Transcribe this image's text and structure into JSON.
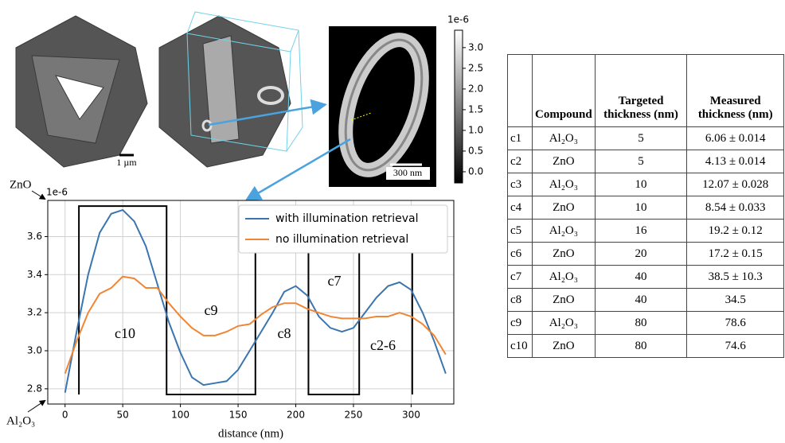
{
  "chart_data": {
    "type": "line",
    "offset_label": "1e-6",
    "x_label": "distance (nm)",
    "xlim": [
      -15,
      337
    ],
    "ylim": [
      2.72,
      3.79
    ],
    "xticks": [
      0,
      50,
      100,
      150,
      200,
      250,
      300
    ],
    "yticks": [
      2.8,
      {
        "value": 3,
        "label": "3.0"
      },
      3.2,
      3.4,
      3.6
    ],
    "grid": true,
    "legend": "upper right",
    "series": [
      {
        "name": "with illumination retrieval",
        "color": "#3b75af",
        "x": [
          0,
          10,
          20,
          30,
          40,
          50,
          60,
          70,
          80,
          90,
          100,
          110,
          120,
          130,
          140,
          150,
          160,
          170,
          180,
          190,
          200,
          210,
          220,
          230,
          240,
          250,
          260,
          270,
          280,
          290,
          300,
          310,
          320,
          330
        ],
        "values": [
          2.78,
          3.1,
          3.4,
          3.62,
          3.72,
          3.74,
          3.68,
          3.55,
          3.35,
          3.15,
          2.99,
          2.86,
          2.82,
          2.83,
          2.84,
          2.9,
          3.0,
          3.1,
          3.2,
          3.31,
          3.34,
          3.29,
          3.18,
          3.12,
          3.1,
          3.12,
          3.2,
          3.28,
          3.34,
          3.36,
          3.32,
          3.2,
          3.05,
          2.88
        ]
      },
      {
        "name": "no illumination retrieval",
        "color": "#ef8636",
        "x": [
          0,
          10,
          20,
          30,
          40,
          50,
          60,
          70,
          80,
          90,
          100,
          110,
          120,
          130,
          140,
          150,
          160,
          170,
          180,
          190,
          200,
          210,
          220,
          230,
          240,
          250,
          260,
          270,
          280,
          290,
          300,
          310,
          320,
          330
        ],
        "values": [
          2.88,
          3.05,
          3.2,
          3.3,
          3.33,
          3.39,
          3.38,
          3.33,
          3.33,
          3.25,
          3.18,
          3.12,
          3.08,
          3.08,
          3.1,
          3.13,
          3.14,
          3.19,
          3.23,
          3.25,
          3.25,
          3.22,
          3.2,
          3.18,
          3.17,
          3.17,
          3.17,
          3.18,
          3.18,
          3.2,
          3.18,
          3.14,
          3.08,
          2.98
        ]
      }
    ],
    "profile": {
      "color": "#000000",
      "x": [
        12,
        12,
        88,
        88,
        165,
        165,
        211,
        211,
        255,
        255,
        301,
        301
      ],
      "values": [
        2.77,
        3.76,
        3.76,
        2.77,
        2.77,
        3.76,
        3.76,
        2.77,
        2.77,
        3.76,
        3.76,
        2.77
      ]
    },
    "annotations": [
      "c10",
      "c9",
      "c8",
      "c7",
      "c2-6"
    ],
    "top_label": "ZnO",
    "bottom_label": "Al₂O₃"
  },
  "colorbar": {
    "offset_label": "1e-6",
    "clim": [
      -0.27,
      3.42
    ],
    "ticks": [
      {
        "value": 0,
        "label": "0.0"
      },
      0.5,
      {
        "value": 1,
        "label": "1.0"
      },
      1.5,
      {
        "value": 2,
        "label": "2.0"
      },
      2.5,
      {
        "value": 3,
        "label": "3.0"
      }
    ]
  },
  "scale_bars": [
    "1 µm",
    "300 nm"
  ],
  "table": {
    "columns": [
      "",
      "Compound",
      "Targeted thickness (nm)",
      "Measured thickness (nm)"
    ],
    "rows": [
      [
        "c1",
        "Al₂O₃",
        "5",
        "6.06 ± 0.014"
      ],
      [
        "c2",
        "ZnO",
        "5",
        "4.13 ± 0.014"
      ],
      [
        "c3",
        "Al₂O₃",
        "10",
        "12.07 ± 0.028"
      ],
      [
        "c4",
        "ZnO",
        "10",
        "8.54 ± 0.033"
      ],
      [
        "c5",
        "Al₂O₃",
        "16",
        "19.2 ± 0.12"
      ],
      [
        "c6",
        "ZnO",
        "20",
        "17.2 ± 0.15"
      ],
      [
        "c7",
        "Al₂O₃",
        "40",
        "38.5 ± 10.3"
      ],
      [
        "c8",
        "ZnO",
        "40",
        "34.5"
      ],
      [
        "c9",
        "Al₂O₃",
        "80",
        "78.6"
      ],
      [
        "c10",
        "ZnO",
        "80",
        "74.6"
      ]
    ]
  }
}
